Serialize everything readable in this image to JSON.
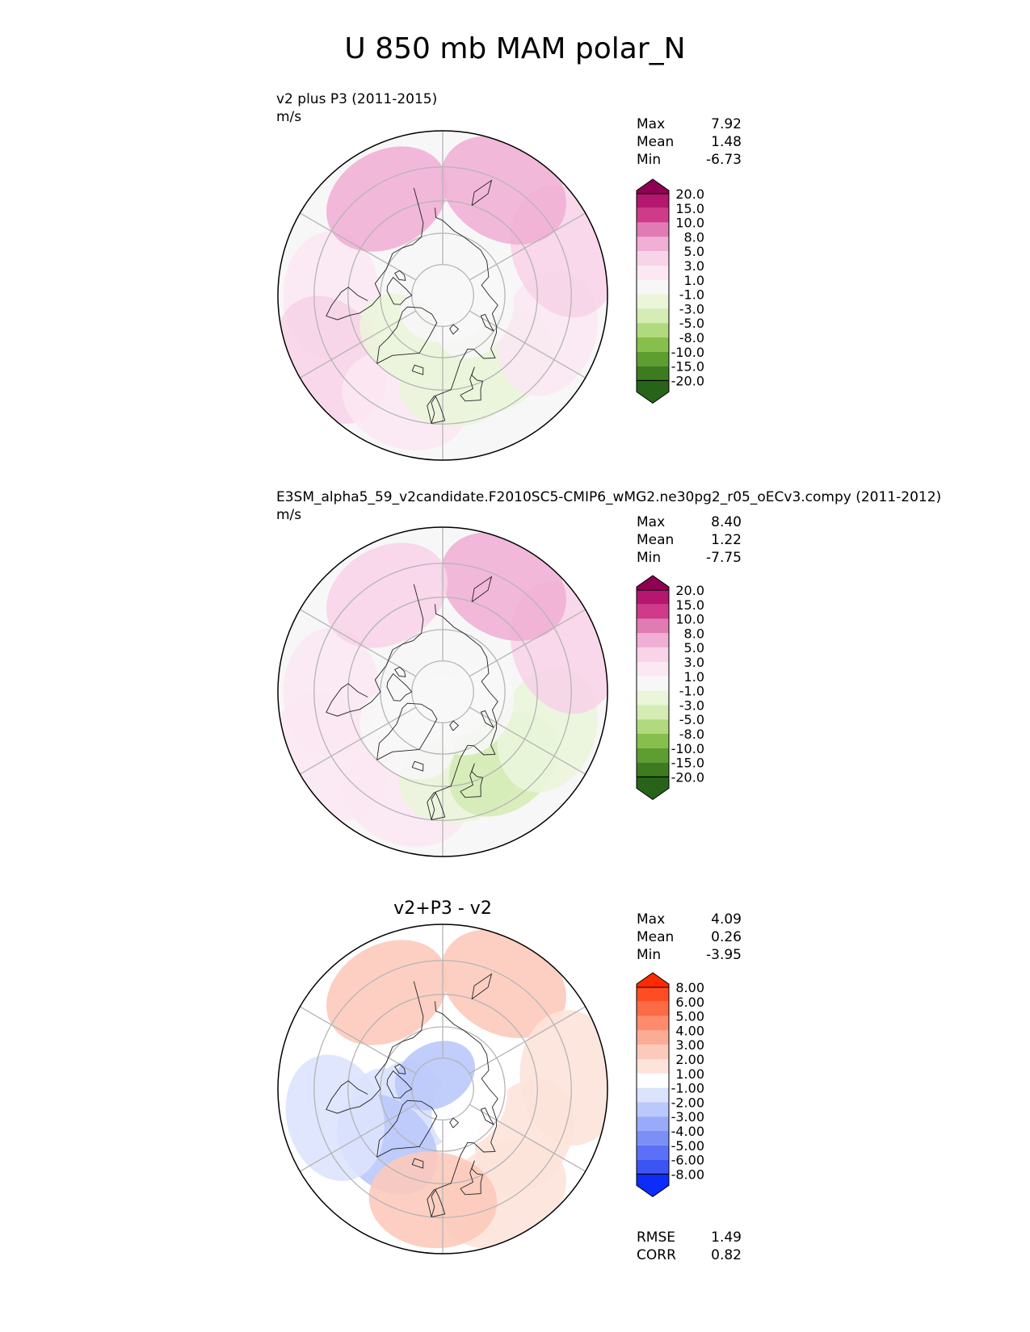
{
  "title": "U 850 mb MAM polar_N",
  "panels": [
    {
      "title": "v2 plus P3 (2011-2015)",
      "units": "m/s",
      "stats": [
        {
          "label": "Max",
          "value": "7.92"
        },
        {
          "label": "Mean",
          "value": "1.48"
        },
        {
          "label": "Min",
          "value": "-6.73"
        }
      ],
      "colorbar": {
        "labels": [
          "20.0",
          "15.0",
          "10.0",
          "8.0",
          "5.0",
          "3.0",
          "1.0",
          "-1.0",
          "-3.0",
          "-5.0",
          "-8.0",
          "-10.0",
          "-15.0",
          "-20.0"
        ],
        "colors": [
          "#8e0152",
          "#b5176f",
          "#cf3b89",
          "#e07cb3",
          "#f0b0d5",
          "#f7d4e8",
          "#fbe8f2",
          "#f7f7f7",
          "#eaf5da",
          "#d5ecb5",
          "#b1da7f",
          "#86bf4b",
          "#5e9d30",
          "#3c7c1f",
          "#276419"
        ]
      },
      "field": [
        {
          "lat": 55,
          "lon": -90,
          "value": 2.5
        },
        {
          "lat": 50,
          "lon": -60,
          "value": 3.0
        },
        {
          "lat": 55,
          "lon": -20,
          "value": 2.0
        },
        {
          "lat": 62,
          "lon": 10,
          "value": -1.5
        },
        {
          "lat": 62,
          "lon": 40,
          "value": -2.5
        },
        {
          "lat": 55,
          "lon": 70,
          "value": 1.0
        },
        {
          "lat": 50,
          "lon": 110,
          "value": 4.5
        },
        {
          "lat": 52,
          "lon": 150,
          "value": 6.0
        },
        {
          "lat": 55,
          "lon": -150,
          "value": 5.0
        },
        {
          "lat": 72,
          "lon": -40,
          "value": -1.5
        },
        {
          "lat": 78,
          "lon": 60,
          "value": -0.5
        },
        {
          "lat": 85,
          "lon": 0,
          "value": -0.5
        }
      ]
    },
    {
      "title": "E3SM_alpha5_59_v2candidate.F2010SC5-CMIP6_wMG2.ne30pg2_r05_oECv3.compy (2011-2012)",
      "units": "m/s",
      "stats": [
        {
          "label": "Max",
          "value": "8.40"
        },
        {
          "label": "Mean",
          "value": "1.22"
        },
        {
          "label": "Min",
          "value": "-7.75"
        }
      ],
      "colorbar": {
        "labels": [
          "20.0",
          "15.0",
          "10.0",
          "8.0",
          "5.0",
          "3.0",
          "1.0",
          "-1.0",
          "-3.0",
          "-5.0",
          "-8.0",
          "-10.0",
          "-15.0",
          "-20.0"
        ],
        "colors": [
          "#8e0152",
          "#b5176f",
          "#cf3b89",
          "#e07cb3",
          "#f0b0d5",
          "#f7d4e8",
          "#fbe8f2",
          "#f7f7f7",
          "#eaf5da",
          "#d5ecb5",
          "#b1da7f",
          "#86bf4b",
          "#5e9d30",
          "#3c7c1f",
          "#276419"
        ]
      },
      "field": [
        {
          "lat": 55,
          "lon": -90,
          "value": 1.5
        },
        {
          "lat": 50,
          "lon": -60,
          "value": 2.5
        },
        {
          "lat": 55,
          "lon": -20,
          "value": 1.0
        },
        {
          "lat": 62,
          "lon": 10,
          "value": -3.0
        },
        {
          "lat": 60,
          "lon": 40,
          "value": -5.0
        },
        {
          "lat": 55,
          "lon": 70,
          "value": -1.5
        },
        {
          "lat": 50,
          "lon": 110,
          "value": 3.5
        },
        {
          "lat": 52,
          "lon": 150,
          "value": 5.5
        },
        {
          "lat": 55,
          "lon": -150,
          "value": 3.0
        },
        {
          "lat": 72,
          "lon": -40,
          "value": -0.5
        },
        {
          "lat": 78,
          "lon": 60,
          "value": 0.5
        },
        {
          "lat": 85,
          "lon": 0,
          "value": 0.5
        }
      ]
    },
    {
      "title": "v2+P3 - v2",
      "units": "",
      "stats": [
        {
          "label": "Max",
          "value": "4.09"
        },
        {
          "label": "Mean",
          "value": "0.26"
        },
        {
          "label": "Min",
          "value": "-3.95"
        }
      ],
      "colorbar": {
        "labels": [
          "8.00",
          "6.00",
          "5.00",
          "4.00",
          "3.00",
          "2.00",
          "1.00",
          "-1.00",
          "-2.00",
          "-3.00",
          "-4.00",
          "-5.00",
          "-6.00",
          "-8.00"
        ],
        "colors": [
          "#ff2a00",
          "#fe4d22",
          "#fd6a46",
          "#fd8b6c",
          "#fcac94",
          "#fccabb",
          "#fde3da",
          "#ffffff",
          "#dbe3fd",
          "#bac8fb",
          "#98aaf9",
          "#7b8ff7",
          "#5b70f6",
          "#3d54f5",
          "#0d2cfa"
        ]
      },
      "field": [
        {
          "lat": 52,
          "lon": 150,
          "value": 2.5
        },
        {
          "lat": 55,
          "lon": -150,
          "value": 2.5
        },
        {
          "lat": 52,
          "lon": 30,
          "value": 1.5
        },
        {
          "lat": 60,
          "lon": 60,
          "value": 1.5
        },
        {
          "lat": 80,
          "lon": -60,
          "value": -1.5
        },
        {
          "lat": 72,
          "lon": -60,
          "value": -2.0
        },
        {
          "lat": 80,
          "lon": 60,
          "value": -0.5
        },
        {
          "lat": 85,
          "lon": -150,
          "value": -2.5
        },
        {
          "lat": 65,
          "lon": -45,
          "value": -2.5
        },
        {
          "lat": 55,
          "lon": -75,
          "value": -1.5
        },
        {
          "lat": 55,
          "lon": -5,
          "value": 2.5
        },
        {
          "lat": 50,
          "lon": 95,
          "value": 1.5
        }
      ],
      "extra_stats": [
        {
          "label": "RMSE",
          "value": "1.49"
        },
        {
          "label": "CORR",
          "value": "0.82"
        }
      ]
    }
  ],
  "chart_data": [
    {
      "type": "heatmap",
      "title": "v2 plus P3 (2011-2015)",
      "units": "m/s",
      "projection": "north polar stereographic",
      "stats": {
        "max": 7.92,
        "mean": 1.48,
        "min": -6.73
      },
      "levels": [
        -20,
        -15,
        -10,
        -8,
        -5,
        -3,
        -1,
        1,
        3,
        5,
        8,
        10,
        15,
        20
      ],
      "colormap": "PiYG"
    },
    {
      "type": "heatmap",
      "title": "E3SM_alpha5_59_v2candidate.F2010SC5-CMIP6_wMG2.ne30pg2_r05_oECv3.compy (2011-2012)",
      "units": "m/s",
      "projection": "north polar stereographic",
      "stats": {
        "max": 8.4,
        "mean": 1.22,
        "min": -7.75
      },
      "levels": [
        -20,
        -15,
        -10,
        -8,
        -5,
        -3,
        -1,
        1,
        3,
        5,
        8,
        10,
        15,
        20
      ],
      "colormap": "PiYG"
    },
    {
      "type": "heatmap",
      "title": "v2+P3 - v2",
      "projection": "north polar stereographic",
      "stats": {
        "max": 4.09,
        "mean": 0.26,
        "min": -3.95,
        "rmse": 1.49,
        "corr": 0.82
      },
      "levels": [
        -8,
        -6,
        -5,
        -4,
        -3,
        -2,
        -1,
        1,
        2,
        3,
        4,
        5,
        6,
        8
      ],
      "colormap": "bwr"
    }
  ]
}
